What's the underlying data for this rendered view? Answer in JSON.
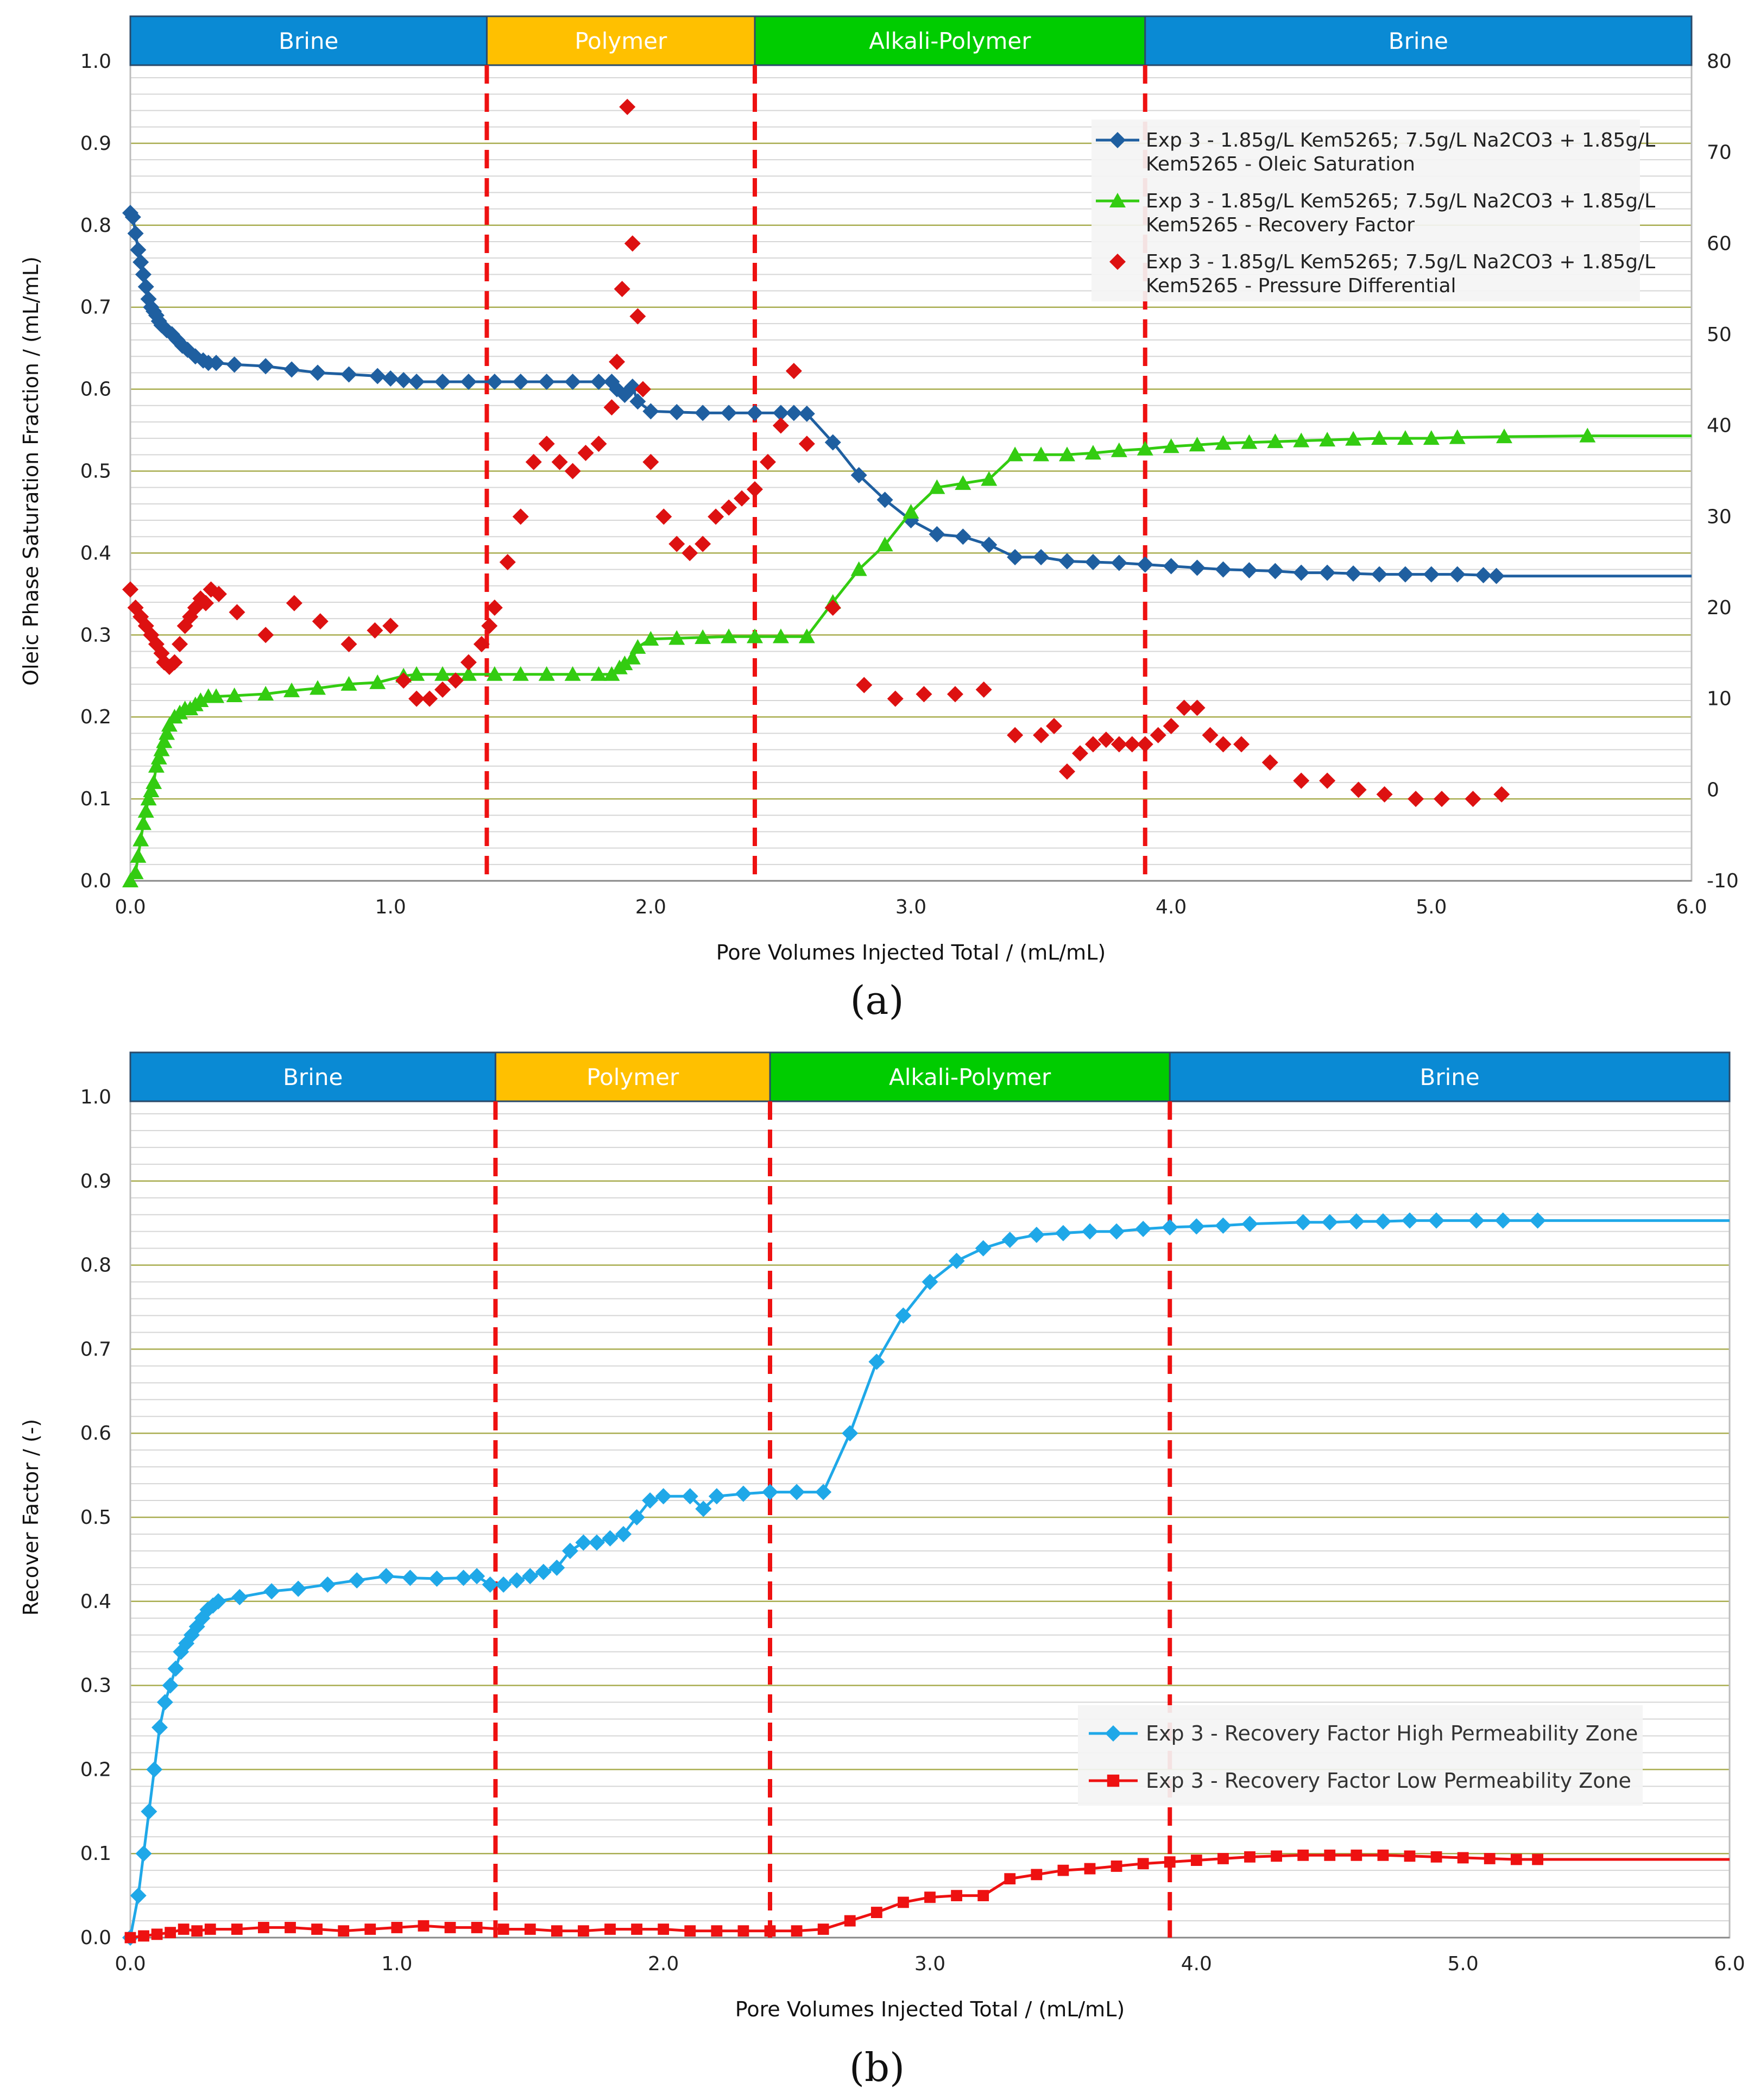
{
  "chart_data": [
    {
      "type": "line",
      "panel_caption": "(a)",
      "xlabel": "Pore Volumes Injected Total / (mL/mL)",
      "ylabel": "Oleic Phase Saturation Fraction / (mL/mL)",
      "xlim": [
        0,
        6
      ],
      "ylim": [
        0,
        1
      ],
      "y2lim": [
        -10,
        80
      ],
      "x_ticks": [
        "0.0",
        "1.0",
        "2.0",
        "3.0",
        "4.0",
        "5.0",
        "6.0"
      ],
      "y_ticks": [
        "0.0",
        "0.1",
        "0.2",
        "0.3",
        "0.4",
        "0.5",
        "0.6",
        "0.7",
        "0.8",
        "0.9",
        "1.0"
      ],
      "y2_ticks": [
        "-10",
        "0",
        "10",
        "20",
        "30",
        "40",
        "50",
        "60",
        "70",
        "80"
      ],
      "phases": [
        {
          "label": "Brine",
          "start": 0,
          "end": 1.37,
          "color": "#0a8ad4"
        },
        {
          "label": "Polymer",
          "start": 1.37,
          "end": 2.4,
          "color": "#ffc000"
        },
        {
          "label": "Alkali-Polymer",
          "start": 2.4,
          "end": 3.9,
          "color": "#00cc00"
        },
        {
          "label": "Brine",
          "start": 3.9,
          "end": 6.0,
          "color": "#0a8ad4"
        }
      ],
      "dividers": [
        1.37,
        2.4,
        3.9
      ],
      "legend_position": "top-right",
      "series": [
        {
          "name": "Exp 3 - 1.85g/L Kem5265; 7.5g/L Na2CO3 + 1.85g/L Kem5265 - Oleic Saturation",
          "legend_line1": "Exp 3 - 1.85g/L Kem5265; 7.5g/L Na2CO3 + 1.85g/L",
          "legend_line2": "Kem5265 - Oleic Saturation",
          "color": "#1f5fa0",
          "marker": "diamond",
          "line": true,
          "axis": "left",
          "x": [
            0,
            0.01,
            0.02,
            0.03,
            0.04,
            0.05,
            0.06,
            0.07,
            0.08,
            0.09,
            0.1,
            0.11,
            0.12,
            0.14,
            0.16,
            0.18,
            0.2,
            0.22,
            0.25,
            0.28,
            0.3,
            0.33,
            0.4,
            0.52,
            0.62,
            0.72,
            0.84,
            0.95,
            1.0,
            1.05,
            1.1,
            1.2,
            1.3,
            1.4,
            1.5,
            1.6,
            1.7,
            1.8,
            1.85,
            1.87,
            1.9,
            1.93,
            1.95,
            2.0,
            2.1,
            2.2,
            2.3,
            2.4,
            2.5,
            2.55,
            2.6,
            2.7,
            2.8,
            2.9,
            3.0,
            3.1,
            3.2,
            3.3,
            3.4,
            3.5,
            3.6,
            3.7,
            3.8,
            3.9,
            4.0,
            4.1,
            4.2,
            4.3,
            4.4,
            4.5,
            4.6,
            4.7,
            4.8,
            4.9,
            5.0,
            5.1,
            5.2,
            5.25,
            6.0
          ],
          "y": [
            0.815,
            0.81,
            0.79,
            0.77,
            0.755,
            0.74,
            0.725,
            0.71,
            0.7,
            0.695,
            0.69,
            0.683,
            0.678,
            0.672,
            0.667,
            0.66,
            0.653,
            0.648,
            0.64,
            0.635,
            0.632,
            0.632,
            0.63,
            0.628,
            0.624,
            0.62,
            0.618,
            0.616,
            0.613,
            0.611,
            0.609,
            0.609,
            0.609,
            0.609,
            0.609,
            0.609,
            0.609,
            0.609,
            0.609,
            0.6,
            0.593,
            0.603,
            0.585,
            0.573,
            0.572,
            0.571,
            0.571,
            0.571,
            0.571,
            0.571,
            0.57,
            0.535,
            0.495,
            0.465,
            0.44,
            0.423,
            0.42,
            0.41,
            0.395,
            0.395,
            0.39,
            0.389,
            0.388,
            0.386,
            0.384,
            0.382,
            0.38,
            0.379,
            0.378,
            0.376,
            0.376,
            0.375,
            0.374,
            0.374,
            0.374,
            0.374,
            0.373,
            0.372,
            0.372
          ]
        },
        {
          "name": "Exp 3 - 1.85g/L Kem5265; 7.5g/L Na2CO3 + 1.85g/L Kem5265 - Recovery Factor",
          "legend_line1": "Exp 3 - 1.85g/L Kem5265; 7.5g/L Na2CO3 + 1.85g/L",
          "legend_line2": "Kem5265 - Recovery Factor",
          "color": "#33cc11",
          "marker": "triangle",
          "line": true,
          "axis": "left",
          "x": [
            0,
            0.02,
            0.03,
            0.04,
            0.05,
            0.06,
            0.07,
            0.08,
            0.09,
            0.1,
            0.11,
            0.12,
            0.13,
            0.14,
            0.15,
            0.17,
            0.19,
            0.21,
            0.23,
            0.25,
            0.27,
            0.3,
            0.33,
            0.4,
            0.52,
            0.62,
            0.72,
            0.84,
            0.95,
            1.05,
            1.1,
            1.2,
            1.3,
            1.4,
            1.5,
            1.6,
            1.7,
            1.8,
            1.85,
            1.88,
            1.9,
            1.93,
            1.95,
            2.0,
            2.1,
            2.2,
            2.3,
            2.4,
            2.5,
            2.6,
            2.7,
            2.8,
            2.9,
            3.0,
            3.1,
            3.2,
            3.3,
            3.4,
            3.5,
            3.6,
            3.7,
            3.8,
            3.9,
            4.0,
            4.1,
            4.2,
            4.3,
            4.4,
            4.5,
            4.6,
            4.7,
            4.8,
            4.9,
            5.0,
            5.1,
            5.28,
            5.6,
            6.0
          ],
          "y": [
            0.0,
            0.01,
            0.03,
            0.05,
            0.07,
            0.085,
            0.1,
            0.11,
            0.12,
            0.14,
            0.15,
            0.16,
            0.17,
            0.18,
            0.19,
            0.2,
            0.205,
            0.21,
            0.21,
            0.215,
            0.22,
            0.225,
            0.225,
            0.226,
            0.228,
            0.232,
            0.235,
            0.24,
            0.242,
            0.25,
            0.252,
            0.252,
            0.252,
            0.252,
            0.252,
            0.252,
            0.252,
            0.252,
            0.252,
            0.26,
            0.265,
            0.272,
            0.285,
            0.295,
            0.296,
            0.297,
            0.298,
            0.298,
            0.298,
            0.298,
            0.34,
            0.38,
            0.41,
            0.45,
            0.48,
            0.485,
            0.49,
            0.52,
            0.52,
            0.52,
            0.522,
            0.525,
            0.527,
            0.53,
            0.532,
            0.534,
            0.535,
            0.536,
            0.537,
            0.538,
            0.539,
            0.54,
            0.54,
            0.54,
            0.541,
            0.542,
            0.543,
            0.543
          ]
        },
        {
          "name": "Exp 3 - 1.85g/L Kem5265; 7.5g/L Na2CO3 + 1.85g/L Kem5265 - Pressure Differential",
          "legend_line1": "Exp 3 - 1.85g/L Kem5265; 7.5g/L Na2CO3 + 1.85g/L",
          "legend_line2": "Kem5265 - Pressure Differential",
          "color": "#dd1111",
          "marker": "diamond",
          "line": false,
          "axis": "right",
          "x": [
            0.0,
            0.02,
            0.04,
            0.06,
            0.08,
            0.1,
            0.12,
            0.13,
            0.15,
            0.17,
            0.19,
            0.21,
            0.23,
            0.25,
            0.27,
            0.29,
            0.31,
            0.34,
            0.41,
            0.52,
            0.63,
            0.73,
            0.84,
            0.94,
            1.0,
            1.05,
            1.1,
            1.15,
            1.2,
            1.25,
            1.3,
            1.35,
            1.38,
            1.4,
            1.45,
            1.5,
            1.55,
            1.6,
            1.65,
            1.7,
            1.75,
            1.8,
            1.85,
            1.87,
            1.89,
            1.91,
            1.93,
            1.95,
            1.97,
            2.0,
            2.05,
            2.1,
            2.15,
            2.2,
            2.25,
            2.3,
            2.35,
            2.4,
            2.45,
            2.5,
            2.55,
            2.6,
            2.7,
            2.82,
            2.94,
            3.05,
            3.17,
            3.28,
            3.4,
            3.5,
            3.55,
            3.6,
            3.65,
            3.7,
            3.75,
            3.8,
            3.85,
            3.9,
            3.95,
            4.0,
            4.05,
            4.1,
            4.15,
            4.2,
            4.27,
            4.38,
            4.5,
            4.6,
            4.72,
            4.82,
            4.94,
            5.04,
            5.16,
            5.27
          ],
          "y": [
            22,
            20,
            19,
            18,
            17,
            16,
            15,
            14,
            13.5,
            14,
            16,
            18,
            19,
            20,
            21,
            20.5,
            22,
            21.5,
            19.5,
            17,
            20.5,
            18.5,
            16,
            17.5,
            18,
            12,
            10,
            10,
            11,
            12,
            14,
            16,
            18,
            20,
            25,
            30,
            36,
            38,
            36,
            35,
            37,
            38,
            42,
            47,
            55,
            75,
            60,
            52,
            44,
            36,
            30,
            27,
            26,
            27,
            30,
            31,
            32,
            33,
            36,
            40,
            46,
            38,
            20,
            11.5,
            10,
            10.5,
            10.5,
            11,
            6,
            6,
            7,
            2,
            4,
            5,
            5.5,
            5,
            5,
            5,
            6,
            7,
            9,
            9,
            6,
            5,
            5,
            3,
            1,
            1,
            0,
            -0.5,
            -1,
            -1,
            -1,
            -0.5
          ]
        }
      ]
    },
    {
      "type": "line",
      "panel_caption": "(b)",
      "xlabel": "Pore Volumes Injected Total / (mL/mL)",
      "ylabel": "Recover Factor / (-)",
      "xlim": [
        0,
        6
      ],
      "ylim": [
        0,
        1
      ],
      "x_ticks": [
        "0.0",
        "1.0",
        "2.0",
        "3.0",
        "4.0",
        "5.0",
        "6.0"
      ],
      "y_ticks": [
        "0.0",
        "0.1",
        "0.2",
        "0.3",
        "0.4",
        "0.5",
        "0.6",
        "0.7",
        "0.8",
        "0.9",
        "1.0"
      ],
      "phases": [
        {
          "label": "Brine",
          "start": 0,
          "end": 1.37,
          "color": "#0a8ad4"
        },
        {
          "label": "Polymer",
          "start": 1.37,
          "end": 2.4,
          "color": "#ffc000"
        },
        {
          "label": "Alkali-Polymer",
          "start": 2.4,
          "end": 3.9,
          "color": "#00cc00"
        },
        {
          "label": "Brine",
          "start": 3.9,
          "end": 6.0,
          "color": "#0a8ad4"
        }
      ],
      "dividers": [
        1.37,
        2.4,
        3.9
      ],
      "legend_position": "center-right",
      "series": [
        {
          "name": "Exp 3 - Recovery Factor High Permeability Zone",
          "color": "#1fa8e8",
          "marker": "diamond",
          "line": true,
          "x": [
            0,
            0.03,
            0.05,
            0.07,
            0.09,
            0.11,
            0.13,
            0.15,
            0.17,
            0.19,
            0.21,
            0.23,
            0.25,
            0.27,
            0.29,
            0.31,
            0.33,
            0.41,
            0.53,
            0.63,
            0.74,
            0.85,
            0.96,
            1.05,
            1.15,
            1.25,
            1.3,
            1.35,
            1.4,
            1.45,
            1.5,
            1.55,
            1.6,
            1.65,
            1.7,
            1.75,
            1.8,
            1.85,
            1.9,
            1.95,
            2.0,
            2.1,
            2.15,
            2.2,
            2.3,
            2.4,
            2.5,
            2.6,
            2.7,
            2.8,
            2.9,
            3.0,
            3.1,
            3.2,
            3.3,
            3.4,
            3.5,
            3.6,
            3.7,
            3.8,
            3.9,
            4.0,
            4.1,
            4.2,
            4.4,
            4.5,
            4.6,
            4.7,
            4.8,
            4.9,
            5.05,
            5.15,
            5.28,
            6.0
          ],
          "y": [
            0.0,
            0.05,
            0.1,
            0.15,
            0.2,
            0.25,
            0.28,
            0.3,
            0.32,
            0.34,
            0.35,
            0.36,
            0.37,
            0.38,
            0.39,
            0.395,
            0.4,
            0.405,
            0.412,
            0.415,
            0.42,
            0.425,
            0.43,
            0.428,
            0.427,
            0.428,
            0.43,
            0.42,
            0.42,
            0.425,
            0.43,
            0.435,
            0.44,
            0.46,
            0.47,
            0.47,
            0.475,
            0.48,
            0.5,
            0.52,
            0.525,
            0.525,
            0.51,
            0.525,
            0.528,
            0.53,
            0.53,
            0.53,
            0.6,
            0.685,
            0.74,
            0.78,
            0.805,
            0.82,
            0.83,
            0.836,
            0.838,
            0.84,
            0.84,
            0.843,
            0.845,
            0.846,
            0.847,
            0.849,
            0.851,
            0.851,
            0.852,
            0.852,
            0.853,
            0.853,
            0.853,
            0.853,
            0.853,
            0.853
          ]
        },
        {
          "name": "Exp 3 - Recovery Factor Low Permeability Zone",
          "color": "#ee1111",
          "marker": "square",
          "line": true,
          "x": [
            0,
            0.05,
            0.1,
            0.15,
            0.2,
            0.25,
            0.3,
            0.4,
            0.5,
            0.6,
            0.7,
            0.8,
            0.9,
            1.0,
            1.1,
            1.2,
            1.3,
            1.4,
            1.5,
            1.6,
            1.7,
            1.8,
            1.9,
            2.0,
            2.1,
            2.2,
            2.3,
            2.4,
            2.5,
            2.6,
            2.7,
            2.8,
            2.9,
            3.0,
            3.1,
            3.2,
            3.3,
            3.4,
            3.5,
            3.6,
            3.7,
            3.8,
            3.9,
            4.0,
            4.1,
            4.2,
            4.3,
            4.4,
            4.5,
            4.6,
            4.7,
            4.8,
            4.9,
            5.0,
            5.1,
            5.2,
            5.28,
            6.0
          ],
          "y": [
            0.0,
            0.002,
            0.004,
            0.006,
            0.01,
            0.008,
            0.01,
            0.01,
            0.012,
            0.012,
            0.01,
            0.008,
            0.01,
            0.012,
            0.014,
            0.012,
            0.012,
            0.01,
            0.01,
            0.008,
            0.008,
            0.01,
            0.01,
            0.01,
            0.008,
            0.008,
            0.008,
            0.008,
            0.008,
            0.01,
            0.02,
            0.03,
            0.042,
            0.048,
            0.05,
            0.05,
            0.07,
            0.075,
            0.08,
            0.082,
            0.085,
            0.088,
            0.09,
            0.092,
            0.094,
            0.096,
            0.097,
            0.098,
            0.098,
            0.098,
            0.098,
            0.097,
            0.096,
            0.095,
            0.094,
            0.093,
            0.093,
            0.093
          ]
        }
      ]
    }
  ]
}
